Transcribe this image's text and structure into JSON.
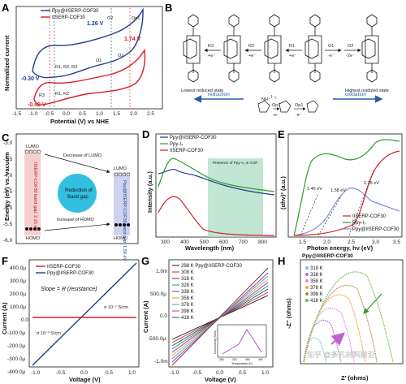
{
  "panel_labels": {
    "a": "A",
    "b": "B",
    "c": "C",
    "d": "D",
    "e": "E",
    "f": "F",
    "g": "G",
    "h": "H"
  },
  "colors": {
    "blue": "#1f3e8c",
    "red": "#d6202a",
    "green": "#3a9a3a",
    "black": "#111111"
  },
  "cv": {
    "ylabel": "Normalized current",
    "xlabel": "Potential (V) vs NHE",
    "xticks": [
      "-1.5",
      "-1.0",
      "-0.5",
      "0.0",
      "0.5",
      "1.0",
      "1.5",
      "2.0",
      "2.5"
    ],
    "legend": [
      "Ppy@IISERP-COF30",
      "IISERP-COF30"
    ],
    "ann": {
      "v126": "1.26 V",
      "o2": "O2",
      "op1": "Op1",
      "v174": "1.74 V",
      "o2b": "O2",
      "o1": "O1",
      "r123": "R1, R2, R3",
      "vm030": "-0.30 V",
      "r3": "R3",
      "r12": "R1, R2",
      "vm042": "-0.42 V"
    }
  },
  "mech": {
    "lowest": "Lowest reduced state",
    "highest": "Highest oxidized state",
    "reduction": "reduction",
    "oxidation": "oxidation",
    "steps": {
      "r3": "R3",
      "r2": "R2",
      "r1": "R1",
      "o1": "O1",
      "o2": "O2",
      "e1": "+e⁻",
      "e2": "+e⁻",
      "e3": "+e⁻",
      "e4": "-e⁻",
      "e5": "-2e⁻",
      "op1": "Op1",
      "e6": "-e⁻",
      "op1b": "Op1",
      "e7": "-e⁻",
      "nh": "NH⁺",
      "i3": "I⁻₃"
    }
  },
  "band": {
    "ylabel": "Energy (eV) vs. vacuum",
    "yticks": [
      "-3.0",
      "-3.5",
      "-4.0",
      "-4.5",
      "-5.0",
      "-5.5",
      "-6.0"
    ],
    "lumo_l": "LUMO",
    "lumo_r": "LUMO",
    "homo_l": "HOMO",
    "homo_r": "HOMO",
    "dec": "Decrease of LUMO",
    "inc": "Increase of HOMO",
    "circle": [
      "Reduction of",
      "Band gap"
    ],
    "left_box": "IISERP-COF30 band gap: 2.25 eV",
    "right_box": "Ppy@IISERP-COF30 band gap: 1.58 eV"
  },
  "uv": {
    "ylabel": "Intensity (a.u.)",
    "xlabel": "Wavelength (nm)",
    "xticks": [
      "300",
      "400",
      "500",
      "600",
      "700",
      "800"
    ],
    "legend": [
      "Ppy@IISERP-COF30",
      "Ppy-I₃",
      "IISERP-COF30"
    ],
    "region": "Presence of Ppy–I₃ in COF"
  },
  "tauc": {
    "ylabel": "(αhν)² (a.u.)",
    "xlabel": "Photon energy, hν (eV)",
    "xticks": [
      "1.5",
      "2.0",
      "2.5",
      "3.0",
      "3.5"
    ],
    "legend": [
      "IISERP-COF30",
      "Ppy-I₃",
      "Ppy@IISERP-COF30"
    ],
    "ann": [
      "1.46 eV",
      "1.58 eV",
      "2.25 eV"
    ]
  },
  "iv": {
    "ylabel": "Current (A)",
    "xlabel": "Voltage (V)",
    "yticks": [
      "400.0μ",
      "300.0μ",
      "200.0μ",
      "100.0μ",
      "0.0",
      "-100.0μ",
      "-200.0μ",
      "-300.0μ",
      "-400.0μ"
    ],
    "xticks": [
      "-1.0",
      "-0.5",
      "0.0",
      "0.5",
      "1.0"
    ],
    "legend": [
      "IISERP-COF30",
      "Ppy@IISERP-COF30"
    ],
    "slope": "Slope = R (resistance)",
    "s1": "σ 10⁻⁷ S/cm",
    "s2": "σ 10⁻³ S/cm"
  },
  "tiv": {
    "ylabel": "Current (A)",
    "xlabel": "Voltage (V)",
    "yticks": [
      "1.0m",
      "500.0μ",
      "0.0",
      "-500.0μ",
      "-1.0m"
    ],
    "xticks": [
      "-1.0",
      "-0.5",
      "0.0",
      "0.5",
      "1.0"
    ],
    "legend": [
      "298 K Ppy@IISERP-COF30",
      "308 K",
      "318 K",
      "328 K",
      "338 K",
      "358 K",
      "378 K",
      "398 K",
      "418 K"
    ],
    "inset_y": "Conductivity (S/cm)",
    "inset_x": "Temperature (K)",
    "inset_xticks": [
      "280",
      "320",
      "360",
      "400"
    ]
  },
  "eis": {
    "title": "Ppy@IISERP-COF30",
    "ylabel": "-Z'' (ohms)",
    "xlabel": "Z' (ohms)",
    "legend": [
      "318 K",
      "338 K",
      "358 K",
      "378 K",
      "398 K",
      "418 K"
    ],
    "legend_colors": [
      "#6ec6e8",
      "#9f7ad1",
      "#e38bd0",
      "#e8a33b",
      "#b58a52",
      "#6dbf4b"
    ]
  },
  "watermark": "知乎 @多孔材料前沿"
}
